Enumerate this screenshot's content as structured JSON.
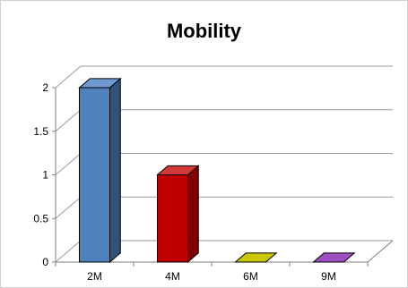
{
  "chart_data": {
    "type": "bar",
    "title": "Mobility",
    "xlabel": "",
    "ylabel": "",
    "categories": [
      "2M",
      "4M",
      "6M",
      "9M"
    ],
    "values": [
      2,
      1,
      0,
      0
    ],
    "ylim": [
      0,
      2
    ],
    "yticks": [
      "0",
      "0.5",
      "1",
      "1.5",
      "2"
    ],
    "yticks_values": [
      0,
      0.5,
      1,
      1.5,
      2
    ],
    "grid": true,
    "three_d": true,
    "legend": "none",
    "colors": [
      "#4f81bd",
      "#c00000",
      "#c8c800",
      "#9b4fc0"
    ],
    "side_colors": [
      "#2f527f",
      "#7f0000",
      "#8a8a00",
      "#5f2a7d"
    ],
    "top_colors": [
      "#6f99cf",
      "#d23a3a",
      "#d9d900",
      "#b06cd6"
    ]
  }
}
